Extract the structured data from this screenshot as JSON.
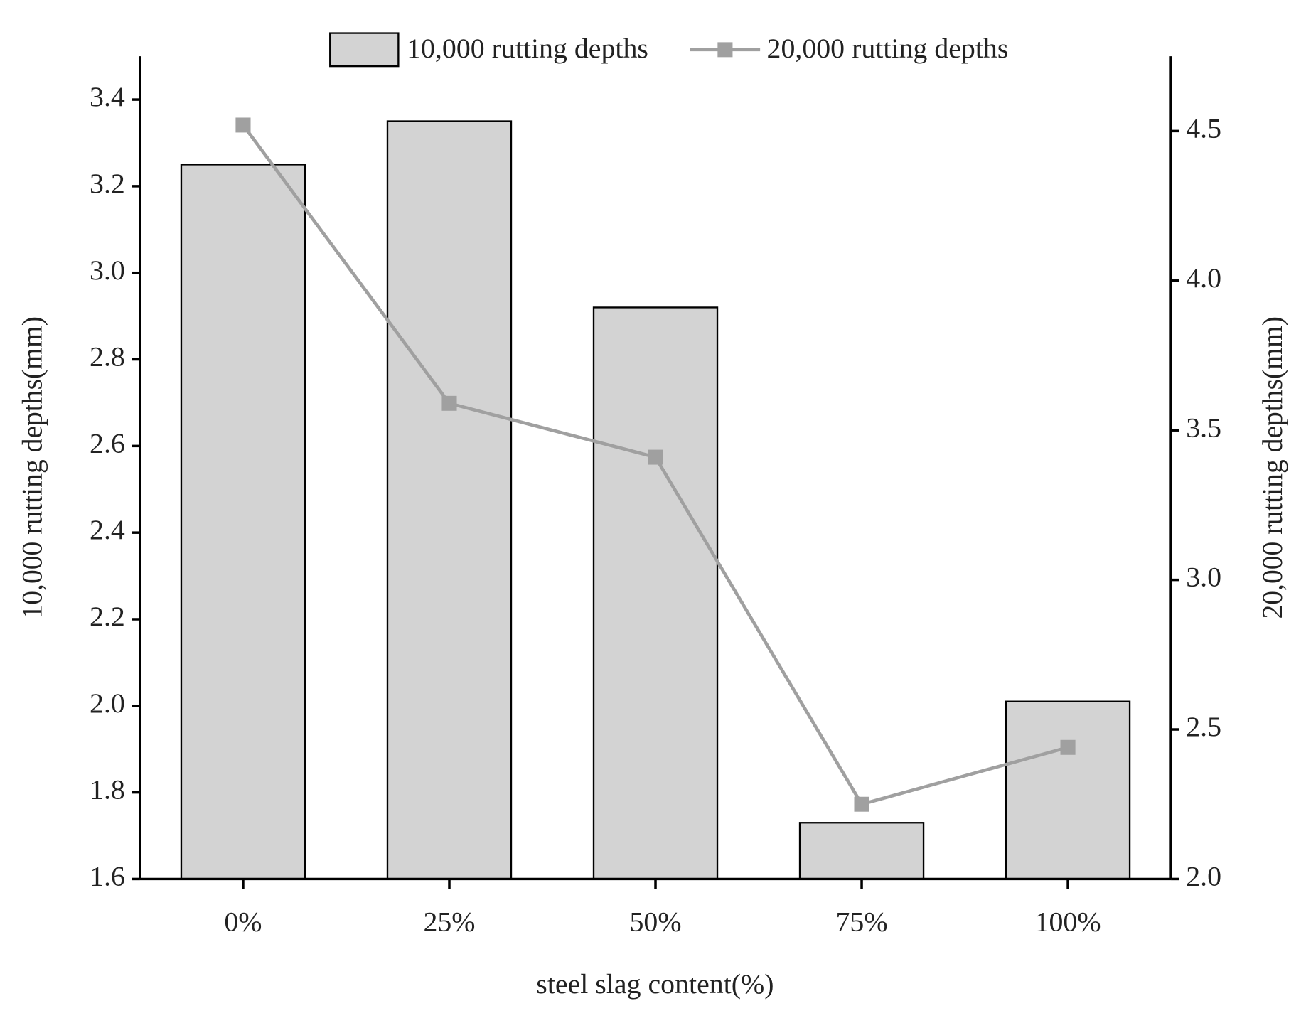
{
  "chart_data": {
    "type": "bar-line",
    "categories": [
      "0%",
      "25%",
      "50%",
      "75%",
      "100%"
    ],
    "series": [
      {
        "name": "10,000 rutting depths",
        "type": "bar",
        "color": "#d3d3d3",
        "axis": "y",
        "values": [
          3.25,
          3.35,
          2.92,
          1.73,
          2.01
        ]
      },
      {
        "name": "20,000 rutting depths",
        "type": "line",
        "color": "#a0a0a0",
        "axis": "y2",
        "values": [
          4.52,
          3.59,
          3.41,
          2.25,
          2.44
        ]
      }
    ],
    "x_label": "steel slag content(%)",
    "y_label": "10,000 rutting depths(mm)",
    "y2_label": "20,000 rutting depths(mm)",
    "ylim": [
      1.6,
      3.5
    ],
    "yticks": [
      1.6,
      1.8,
      {
        "value": 2,
        "label": "2.0"
      },
      2.2,
      2.4,
      2.6,
      2.8,
      {
        "value": 3,
        "label": "3.0"
      },
      3.2,
      3.4
    ],
    "y2lim": [
      2,
      4.75
    ],
    "y2ticks": [
      {
        "value": 2,
        "label": "2.0"
      },
      2.5,
      {
        "value": 3,
        "label": "3.0"
      },
      3.5,
      {
        "value": 4,
        "label": "4.0"
      },
      4.5
    ],
    "grid": false,
    "legend": "top"
  }
}
